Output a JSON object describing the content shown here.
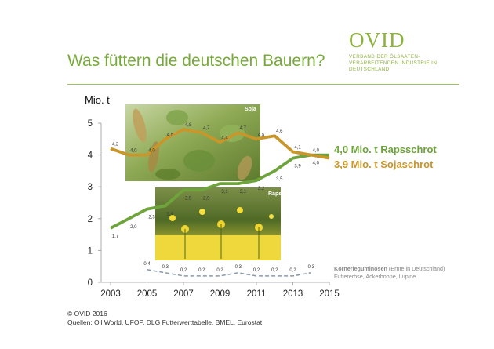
{
  "header": {
    "title": "Was füttern die deutschen Bauern?",
    "logo_word": "OVID",
    "logo_tagline": "VERBAND DER ÖLSAATEN-VERARBEITENDEN INDUSTRIE IN DEUTSCHLAND"
  },
  "footer": {
    "copyright": "© OVID 2016",
    "sources": "Quellen: Oil World, UFOP, DLG Futterwerttabelle, BMEL, Eurostat"
  },
  "photos": {
    "soja_label": "Soja",
    "raps_label": "Raps"
  },
  "colors": {
    "raps": "#6ea43b",
    "soja": "#c9962a",
    "legumes": "#8a9aac",
    "title": "#77aa3b"
  },
  "chart_data": {
    "type": "line",
    "ylabel": "Mio. t",
    "ylim": [
      0,
      5
    ],
    "xlim": [
      2003,
      2015
    ],
    "x_ticks": [
      "2003",
      "2005",
      "2007",
      "2009",
      "2011",
      "2013",
      "2015"
    ],
    "y_ticks": [
      "0",
      "1",
      "2",
      "3",
      "4",
      "5"
    ],
    "x": [
      2003,
      2004,
      2005,
      2006,
      2007,
      2008,
      2009,
      2010,
      2011,
      2012,
      2013,
      2014,
      2015
    ],
    "series": [
      {
        "key": "raps",
        "values": [
          1.7,
          2.0,
          2.3,
          2.4,
          2.9,
          2.9,
          3.1,
          3.1,
          3.2,
          3.5,
          3.9,
          4.0,
          4.0
        ],
        "labels": [
          "1,7",
          "2,0",
          "2,3",
          "2,4",
          "2,9",
          "2,9",
          "3,1",
          "3,1",
          "3,2",
          "3,5",
          "3,9",
          "4,0",
          ""
        ],
        "end_label": "4,0 Mio. t Rapsschrot"
      },
      {
        "key": "soja",
        "values": [
          4.2,
          4.0,
          4.0,
          4.5,
          4.8,
          4.7,
          4.4,
          4.7,
          4.5,
          4.6,
          4.1,
          4.0,
          3.9
        ],
        "labels": [
          "4,2",
          "4,0",
          "4,0",
          "4,5",
          "4,8",
          "4,7",
          "4,4",
          "4,7",
          "4,5",
          "4,6",
          "4,1",
          "4,0",
          ""
        ],
        "end_label": "3,9 Mio. t Sojaschrot"
      },
      {
        "key": "legumes",
        "x": [
          2005,
          2006,
          2007,
          2008,
          2009,
          2010,
          2011,
          2012,
          2013,
          2014
        ],
        "values": [
          0.4,
          0.3,
          0.2,
          0.2,
          0.2,
          0.3,
          0.2,
          0.2,
          0.2,
          0.3
        ],
        "labels": [
          "0,4",
          "0,3",
          "0,2",
          "0,2",
          "0,2",
          "0,3",
          "0,2",
          "0,2",
          "0,2",
          "0,3"
        ],
        "end_label_bold": "Körnerleguminosen",
        "end_label_rest": " (Ernte in Deutschland)",
        "end_label_2": "Futtererbse, Ackerbohne, Lupine"
      }
    ]
  }
}
